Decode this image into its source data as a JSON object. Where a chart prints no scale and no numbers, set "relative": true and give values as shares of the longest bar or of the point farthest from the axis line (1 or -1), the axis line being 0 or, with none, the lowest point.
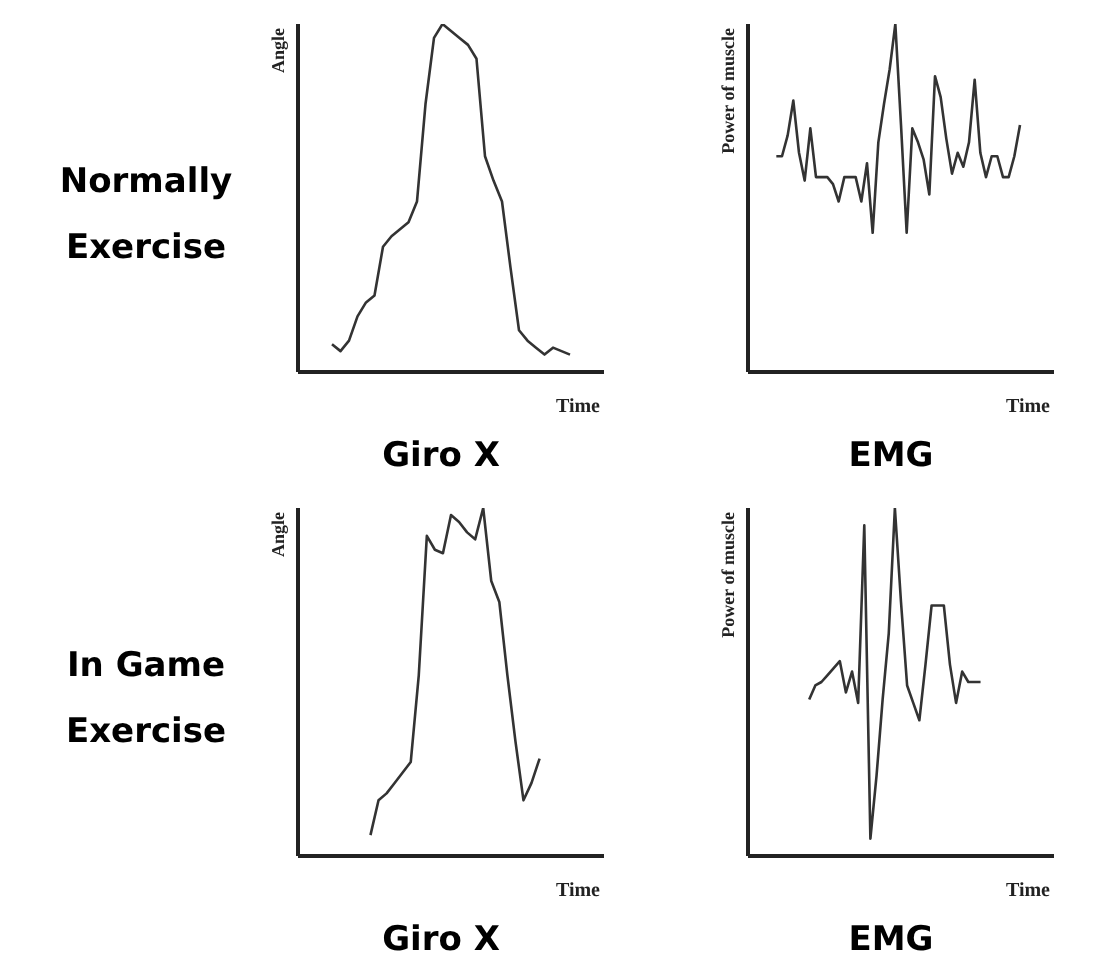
{
  "chart_data": [
    {
      "type": "line",
      "title": "Giro X",
      "xlabel": "Time",
      "ylabel": "Angle",
      "annotations": [
        "Normally Exercise"
      ],
      "relative": true,
      "marker": "none",
      "color": "#333333",
      "categories": [
        null,
        null,
        null,
        null,
        null,
        null,
        null,
        null,
        null,
        null,
        null,
        null,
        null,
        null,
        null,
        null,
        null,
        null,
        null,
        null,
        null,
        null,
        null,
        null,
        null,
        null,
        null,
        null,
        null,
        null,
        null,
        null,
        null,
        null,
        null,
        null,
        null
      ],
      "values": [
        null,
        null,
        null,
        null,
        0.08,
        0.06,
        0.09,
        0.16,
        0.2,
        0.22,
        0.36,
        0.39,
        0.41,
        0.43,
        0.49,
        0.77,
        0.96,
        1,
        0.98,
        0.96,
        0.94,
        0.9,
        0.62,
        0.55,
        0.49,
        0.3,
        0.12,
        0.09,
        0.07,
        0.05,
        0.07,
        0.06,
        0.05,
        null,
        null,
        null,
        null
      ]
    },
    {
      "type": "line",
      "title": "EMG",
      "xlabel": "Time",
      "ylabel": "Power of muscle",
      "relative": true,
      "marker": "none",
      "color": "#333333",
      "categories": [
        null,
        null,
        null,
        null,
        null,
        null,
        null,
        null,
        null,
        null,
        null,
        null,
        null,
        null,
        null,
        null,
        null,
        null,
        null,
        null,
        null,
        null,
        null,
        null,
        null,
        null,
        null,
        null,
        null,
        null,
        null,
        null,
        null,
        null,
        null,
        null,
        null,
        null,
        null,
        null,
        null,
        null,
        null,
        null,
        null,
        null,
        null,
        null,
        null,
        null,
        null,
        null,
        null,
        null,
        null
      ],
      "values": [
        null,
        null,
        null,
        null,
        null,
        0.62,
        0.62,
        0.68,
        0.78,
        0.63,
        0.55,
        0.7,
        0.56,
        0.56,
        0.56,
        0.54,
        0.49,
        0.56,
        0.56,
        0.56,
        0.49,
        0.6,
        0.4,
        0.66,
        0.77,
        0.87,
        1,
        0.71,
        0.4,
        0.7,
        0.66,
        0.61,
        0.51,
        0.85,
        0.79,
        0.67,
        0.57,
        0.63,
        0.59,
        0.66,
        0.84,
        0.63,
        0.56,
        0.62,
        0.62,
        0.56,
        0.56,
        0.62,
        0.71,
        null,
        null,
        null,
        null,
        null,
        null
      ]
    },
    {
      "type": "line",
      "title": "Giro X",
      "xlabel": "Time",
      "ylabel": "Angle",
      "annotations": [
        "In Game Exercise"
      ],
      "relative": true,
      "marker": "none",
      "color": "#333333",
      "categories": [
        null,
        null,
        null,
        null,
        null,
        null,
        null,
        null,
        null,
        null,
        null,
        null,
        null,
        null,
        null,
        null,
        null,
        null,
        null,
        null,
        null,
        null,
        null,
        null,
        null,
        null,
        null,
        null,
        null,
        null,
        null,
        null,
        null,
        null,
        null,
        null,
        null,
        null,
        null
      ],
      "values": [
        null,
        null,
        null,
        null,
        null,
        null,
        null,
        null,
        null,
        0.06,
        0.16,
        0.18,
        0.21,
        0.24,
        0.27,
        0.52,
        0.92,
        0.88,
        0.87,
        0.98,
        0.96,
        0.93,
        0.91,
        1,
        0.79,
        0.73,
        0.52,
        0.33,
        0.16,
        0.21,
        0.28,
        null,
        null,
        null,
        null,
        null,
        null,
        null,
        null
      ]
    },
    {
      "type": "line",
      "title": "EMG",
      "xlabel": "Time",
      "ylabel": "Power of muscle",
      "relative": true,
      "marker": "none",
      "color": "#333333",
      "categories": [
        null,
        null,
        null,
        null,
        null,
        null,
        null,
        null,
        null,
        null,
        null,
        null,
        null,
        null,
        null,
        null,
        null,
        null,
        null,
        null,
        null,
        null,
        null,
        null,
        null,
        null,
        null,
        null,
        null,
        null,
        null,
        null,
        null,
        null,
        null,
        null,
        null,
        null,
        null,
        null,
        null,
        null,
        null,
        null,
        null,
        null,
        null,
        null,
        null,
        null,
        null
      ],
      "values": [
        null,
        null,
        null,
        null,
        null,
        null,
        null,
        null,
        null,
        null,
        0.45,
        0.49,
        0.5,
        0.52,
        0.54,
        0.56,
        0.47,
        0.53,
        0.44,
        0.95,
        0.05,
        0.23,
        0.45,
        0.64,
        1,
        0.73,
        0.49,
        0.44,
        0.39,
        0.55,
        0.72,
        0.72,
        0.72,
        0.55,
        0.44,
        0.53,
        0.5,
        0.5,
        0.5,
        null,
        null,
        null,
        null,
        null,
        null,
        null,
        null,
        null,
        null,
        null,
        null
      ]
    }
  ]
}
